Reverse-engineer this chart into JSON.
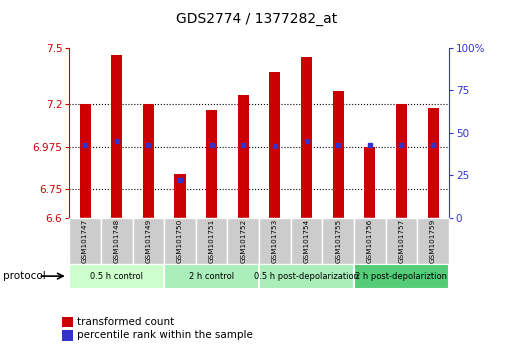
{
  "title": "GDS2774 / 1377282_at",
  "samples": [
    "GSM101747",
    "GSM101748",
    "GSM101749",
    "GSM101750",
    "GSM101751",
    "GSM101752",
    "GSM101753",
    "GSM101754",
    "GSM101755",
    "GSM101756",
    "GSM101757",
    "GSM101759"
  ],
  "transformed_count": [
    7.2,
    7.46,
    7.2,
    6.83,
    7.17,
    7.25,
    7.37,
    7.45,
    7.27,
    6.975,
    7.2,
    7.18
  ],
  "percentile_rank": [
    43,
    45,
    43,
    22,
    43,
    43,
    42,
    45,
    43,
    43,
    43,
    43
  ],
  "ymin": 6.6,
  "ymax": 7.5,
  "yticks": [
    6.6,
    6.75,
    6.975,
    7.2,
    7.5
  ],
  "ytick_labels": [
    "6.6",
    "6.75",
    "6.975",
    "7.2",
    "7.5"
  ],
  "right_yticks": [
    0,
    25,
    50,
    75,
    100
  ],
  "right_ytick_labels": [
    "0",
    "25",
    "50",
    "75",
    "100%"
  ],
  "bar_color": "#cc0000",
  "dot_color": "#3333cc",
  "groups": [
    {
      "label": "0.5 h control",
      "start": 0,
      "end": 3,
      "color": "#ccffcc"
    },
    {
      "label": "2 h control",
      "start": 3,
      "end": 6,
      "color": "#aaeebb"
    },
    {
      "label": "0.5 h post-depolarization",
      "start": 6,
      "end": 9,
      "color": "#aaeebb"
    },
    {
      "label": "2 h post-depolariztion",
      "start": 9,
      "end": 12,
      "color": "#55cc77"
    }
  ],
  "protocol_label": "protocol",
  "legend_items": [
    {
      "label": "transformed count",
      "color": "#cc0000"
    },
    {
      "label": "percentile rank within the sample",
      "color": "#3333cc"
    }
  ],
  "bg_color": "#ffffff",
  "plot_bg_color": "#ffffff",
  "axis_color_left": "#cc0000",
  "axis_color_right": "#3333cc",
  "bar_width": 0.35,
  "sample_box_color": "#cccccc",
  "dotted_lines": [
    6.75,
    6.975,
    7.2
  ]
}
